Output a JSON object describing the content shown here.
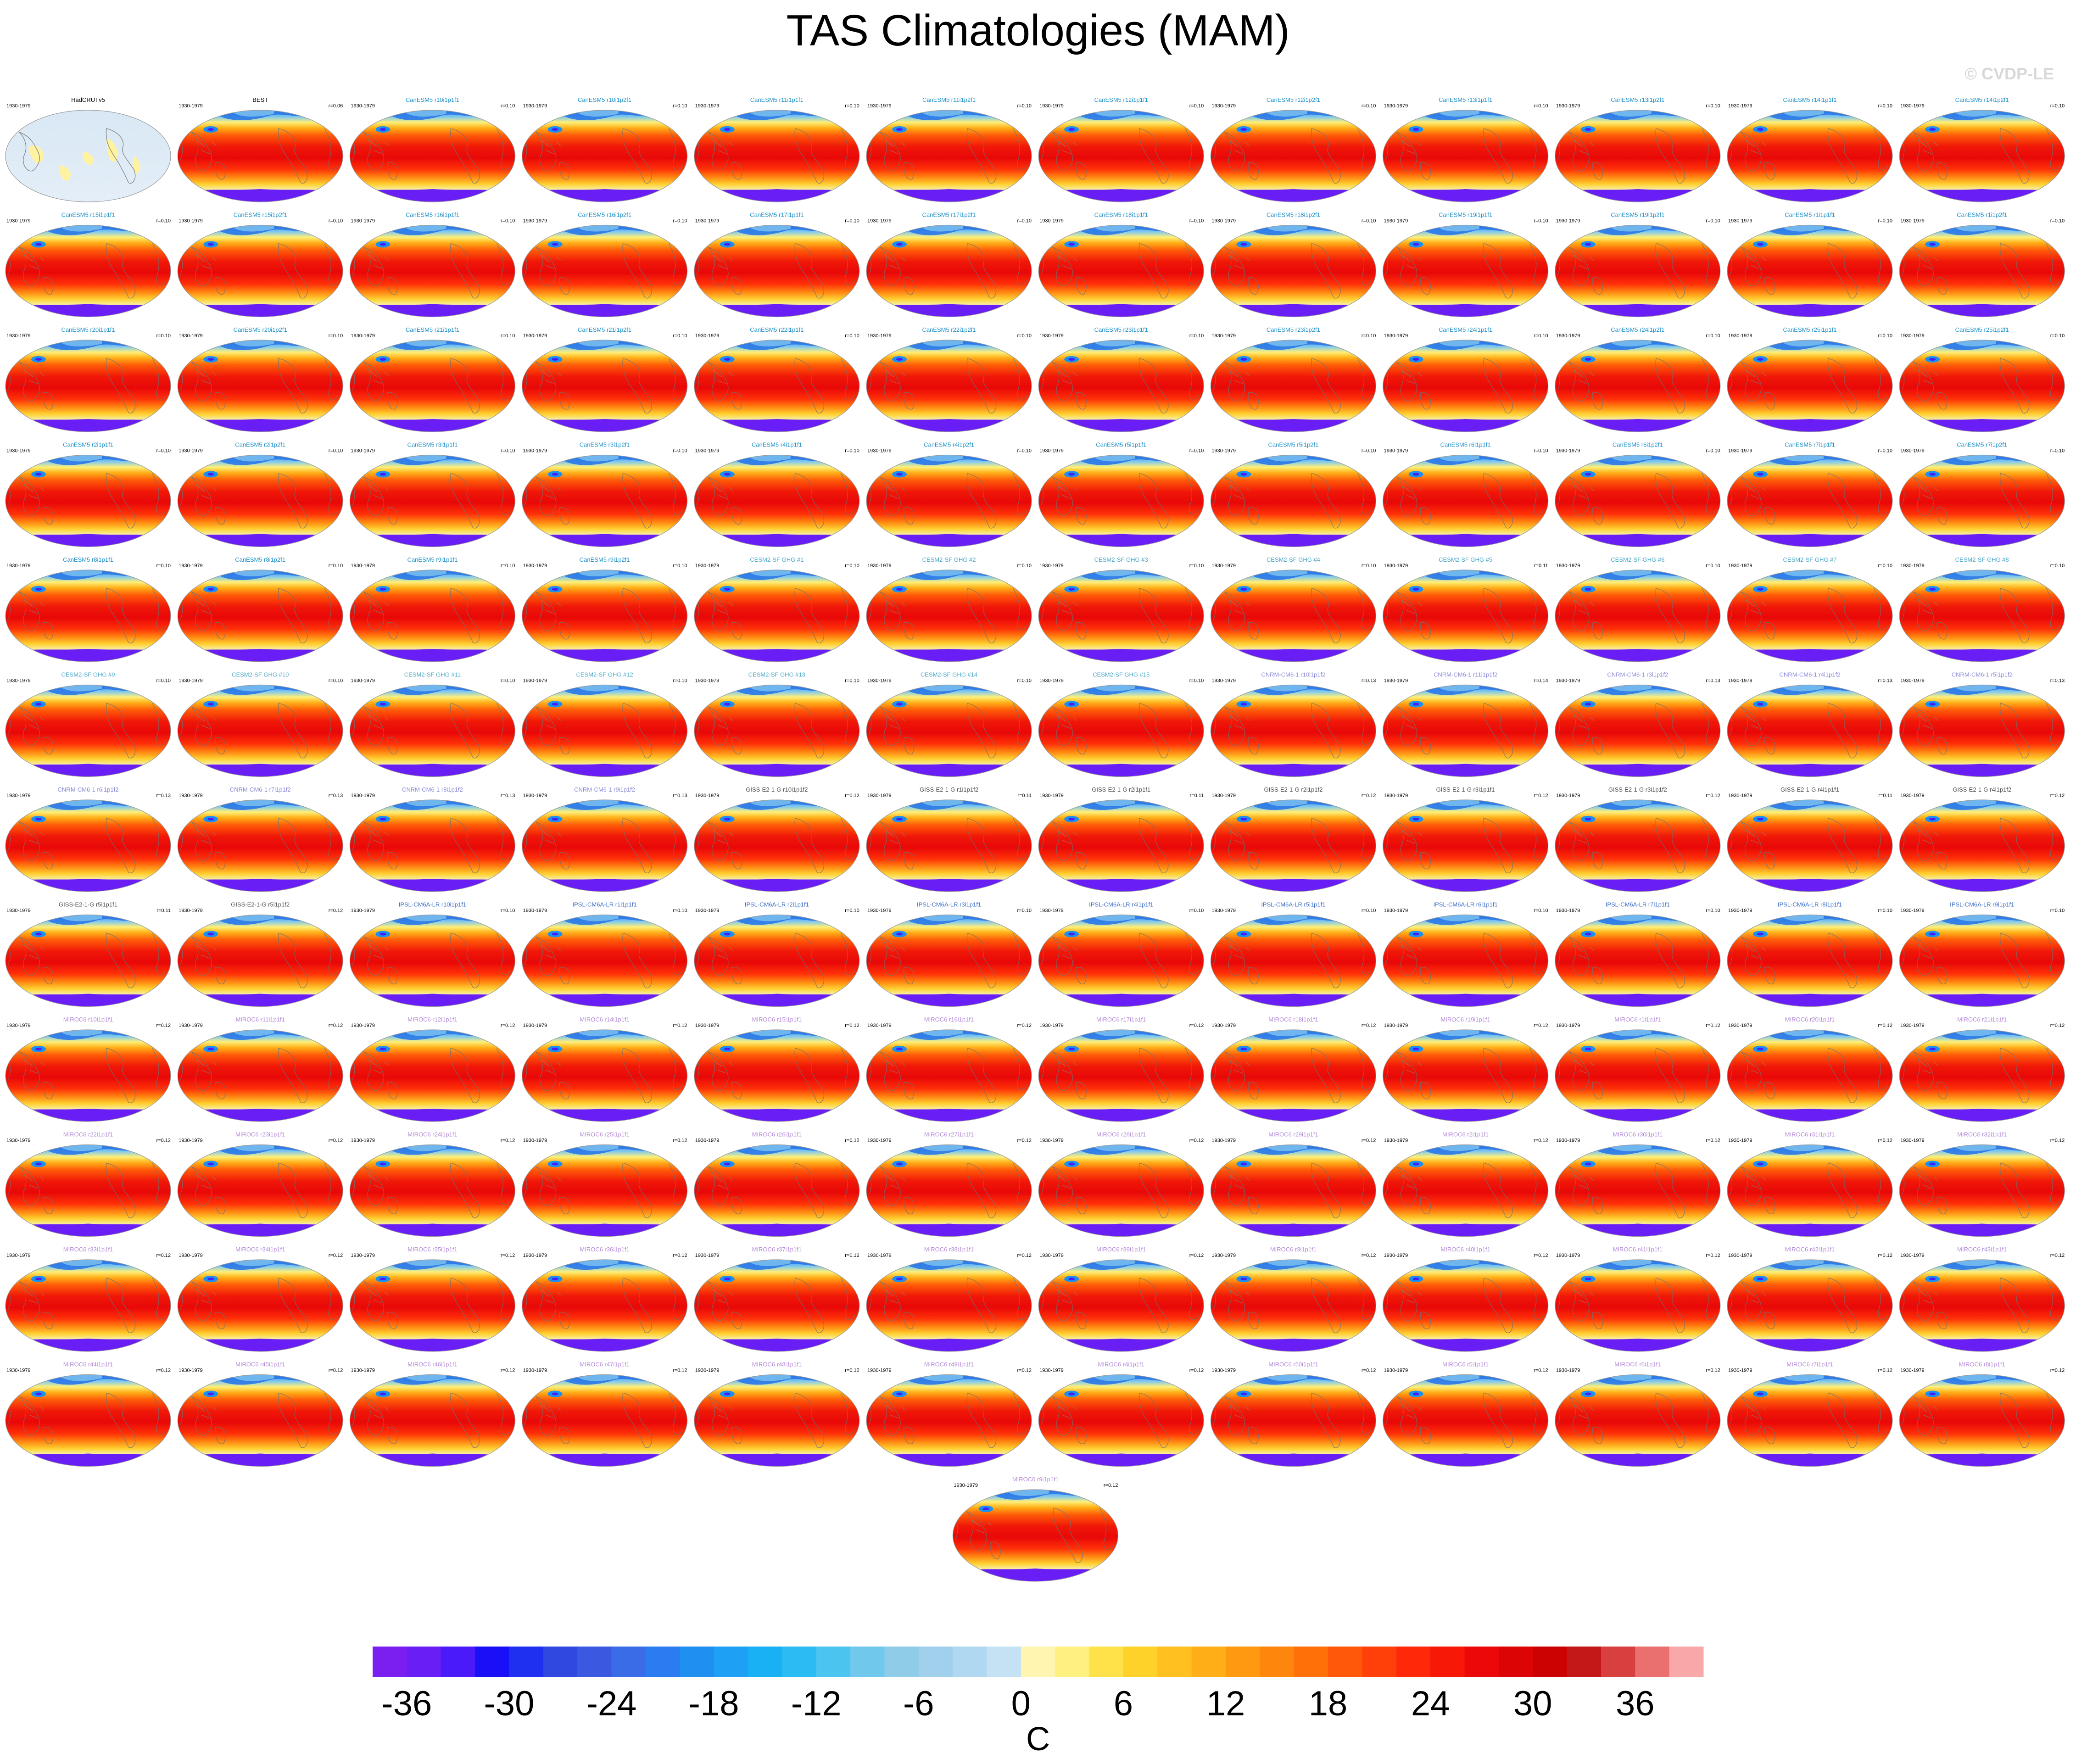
{
  "title": "TAS Climatologies (MAM)",
  "watermark": "© CVDP-LE",
  "chart_data": {
    "type": "heatmap",
    "title": "TAS Climatologies (MAM)",
    "projection": "global robinson map panels",
    "period_label": "1930-1979",
    "panels": [
      {
        "name": "HadCRUTv5",
        "r": "",
        "color": "#000000",
        "kind": "obs"
      },
      {
        "name": "BEST",
        "r": "r=0.06",
        "color": "#000000"
      },
      {
        "name": "CanESM5 r10i1p1f1",
        "r": "r=0.10",
        "color": "#1e90c8"
      },
      {
        "name": "CanESM5 r10i1p2f1",
        "r": "r=0.10",
        "color": "#1e90c8"
      },
      {
        "name": "CanESM5 r11i1p1f1",
        "r": "r=0.10",
        "color": "#1e90c8"
      },
      {
        "name": "CanESM5 r11i1p2f1",
        "r": "r=0.10",
        "color": "#1e90c8"
      },
      {
        "name": "CanESM5 r12i1p1f1",
        "r": "r=0.10",
        "color": "#1e90c8"
      },
      {
        "name": "CanESM5 r12i1p2f1",
        "r": "r=0.10",
        "color": "#1e90c8"
      },
      {
        "name": "CanESM5 r13i1p1f1",
        "r": "r=0.10",
        "color": "#1e90c8"
      },
      {
        "name": "CanESM5 r13i1p2f1",
        "r": "r=0.10",
        "color": "#1e90c8"
      },
      {
        "name": "CanESM5 r14i1p1f1",
        "r": "r=0.10",
        "color": "#1e90c8"
      },
      {
        "name": "CanESM5 r14i1p2f1",
        "r": "r=0.10",
        "color": "#1e90c8"
      },
      {
        "name": "CanESM5 r15i1p1f1",
        "r": "r=0.10",
        "color": "#1e90c8"
      },
      {
        "name": "CanESM5 r15i1p2f1",
        "r": "r=0.10",
        "color": "#1e90c8"
      },
      {
        "name": "CanESM5 r16i1p1f1",
        "r": "r=0.10",
        "color": "#1e90c8"
      },
      {
        "name": "CanESM5 r16i1p2f1",
        "r": "r=0.10",
        "color": "#1e90c8"
      },
      {
        "name": "CanESM5 r17i1p1f1",
        "r": "r=0.10",
        "color": "#1e90c8"
      },
      {
        "name": "CanESM5 r17i1p2f1",
        "r": "r=0.10",
        "color": "#1e90c8"
      },
      {
        "name": "CanESM5 r18i1p1f1",
        "r": "r=0.10",
        "color": "#1e90c8"
      },
      {
        "name": "CanESM5 r18i1p2f1",
        "r": "r=0.10",
        "color": "#1e90c8"
      },
      {
        "name": "CanESM5 r19i1p1f1",
        "r": "r=0.10",
        "color": "#1e90c8"
      },
      {
        "name": "CanESM5 r19i1p2f1",
        "r": "r=0.10",
        "color": "#1e90c8"
      },
      {
        "name": "CanESM5 r1i1p1f1",
        "r": "r=0.10",
        "color": "#1e90c8"
      },
      {
        "name": "CanESM5 r1i1p2f1",
        "r": "r=0.10",
        "color": "#1e90c8"
      },
      {
        "name": "CanESM5 r20i1p1f1",
        "r": "r=0.10",
        "color": "#1e90c8"
      },
      {
        "name": "CanESM5 r20i1p2f1",
        "r": "r=0.10",
        "color": "#1e90c8"
      },
      {
        "name": "CanESM5 r21i1p1f1",
        "r": "r=0.10",
        "color": "#1e90c8"
      },
      {
        "name": "CanESM5 r21i1p2f1",
        "r": "r=0.10",
        "color": "#1e90c8"
      },
      {
        "name": "CanESM5 r22i1p1f1",
        "r": "r=0.10",
        "color": "#1e90c8"
      },
      {
        "name": "CanESM5 r22i1p2f1",
        "r": "r=0.10",
        "color": "#1e90c8"
      },
      {
        "name": "CanESM5 r23i1p1f1",
        "r": "r=0.10",
        "color": "#1e90c8"
      },
      {
        "name": "CanESM5 r23i1p2f1",
        "r": "r=0.10",
        "color": "#1e90c8"
      },
      {
        "name": "CanESM5 r24i1p1f1",
        "r": "r=0.10",
        "color": "#1e90c8"
      },
      {
        "name": "CanESM5 r24i1p2f1",
        "r": "r=0.10",
        "color": "#1e90c8"
      },
      {
        "name": "CanESM5 r25i1p1f1",
        "r": "r=0.10",
        "color": "#1e90c8"
      },
      {
        "name": "CanESM5 r25i1p2f1",
        "r": "r=0.10",
        "color": "#1e90c8"
      },
      {
        "name": "CanESM5 r2i1p1f1",
        "r": "r=0.10",
        "color": "#1e90c8"
      },
      {
        "name": "CanESM5 r2i1p2f1",
        "r": "r=0.10",
        "color": "#1e90c8"
      },
      {
        "name": "CanESM5 r3i1p1f1",
        "r": "r=0.10",
        "color": "#1e90c8"
      },
      {
        "name": "CanESM5 r3i1p2f1",
        "r": "r=0.10",
        "color": "#1e90c8"
      },
      {
        "name": "CanESM5 r4i1p1f1",
        "r": "r=0.10",
        "color": "#1e90c8"
      },
      {
        "name": "CanESM5 r4i1p2f1",
        "r": "r=0.10",
        "color": "#1e90c8"
      },
      {
        "name": "CanESM5 r5i1p1f1",
        "r": "r=0.10",
        "color": "#1e90c8"
      },
      {
        "name": "CanESM5 r5i1p2f1",
        "r": "r=0.10",
        "color": "#1e90c8"
      },
      {
        "name": "CanESM5 r6i1p1f1",
        "r": "r=0.10",
        "color": "#1e90c8"
      },
      {
        "name": "CanESM5 r6i1p2f1",
        "r": "r=0.10",
        "color": "#1e90c8"
      },
      {
        "name": "CanESM5 r7i1p1f1",
        "r": "r=0.10",
        "color": "#1e90c8"
      },
      {
        "name": "CanESM5 r7i1p2f1",
        "r": "r=0.10",
        "color": "#1e90c8"
      },
      {
        "name": "CanESM5 r8i1p1f1",
        "r": "r=0.10",
        "color": "#1e90c8"
      },
      {
        "name": "CanESM5 r8i1p2f1",
        "r": "r=0.10",
        "color": "#1e90c8"
      },
      {
        "name": "CanESM5 r9i1p1f1",
        "r": "r=0.10",
        "color": "#1e90c8"
      },
      {
        "name": "CanESM5 r9i1p2f1",
        "r": "r=0.10",
        "color": "#1e90c8"
      },
      {
        "name": "CESM2-SF GHG #1",
        "r": "r=0.10",
        "color": "#4aa8c8"
      },
      {
        "name": "CESM2-SF GHG #2",
        "r": "r=0.10",
        "color": "#4aa8c8"
      },
      {
        "name": "CESM2-SF GHG #3",
        "r": "r=0.10",
        "color": "#4aa8c8"
      },
      {
        "name": "CESM2-SF GHG #4",
        "r": "r=0.10",
        "color": "#4aa8c8"
      },
      {
        "name": "CESM2-SF GHG #5",
        "r": "r=0.11",
        "color": "#4aa8c8"
      },
      {
        "name": "CESM2-SF GHG #6",
        "r": "r=0.10",
        "color": "#4aa8c8"
      },
      {
        "name": "CESM2-SF GHG #7",
        "r": "r=0.10",
        "color": "#4aa8c8"
      },
      {
        "name": "CESM2-SF GHG #8",
        "r": "r=0.10",
        "color": "#4aa8c8"
      },
      {
        "name": "CESM2-SF GHG #9",
        "r": "r=0.10",
        "color": "#4aa8c8"
      },
      {
        "name": "CESM2-SF GHG #10",
        "r": "r=0.10",
        "color": "#4aa8c8"
      },
      {
        "name": "CESM2-SF GHG #11",
        "r": "r=0.10",
        "color": "#4aa8c8"
      },
      {
        "name": "CESM2-SF GHG #12",
        "r": "r=0.10",
        "color": "#4aa8c8"
      },
      {
        "name": "CESM2-SF GHG #13",
        "r": "r=0.10",
        "color": "#4aa8c8"
      },
      {
        "name": "CESM2-SF GHG #14",
        "r": "r=0.10",
        "color": "#4aa8c8"
      },
      {
        "name": "CESM2-SF GHG #15",
        "r": "r=0.10",
        "color": "#4aa8c8"
      },
      {
        "name": "CNRM-CM6-1 r10i1p1f2",
        "r": "r=0.13",
        "color": "#8a8ad8"
      },
      {
        "name": "CNRM-CM6-1 r11i1p1f2",
        "r": "r=0.14",
        "color": "#8a8ad8"
      },
      {
        "name": "CNRM-CM6-1 r3i1p1f2",
        "r": "r=0.13",
        "color": "#8a8ad8"
      },
      {
        "name": "CNRM-CM6-1 r4i1p1f2",
        "r": "r=0.13",
        "color": "#8a8ad8"
      },
      {
        "name": "CNRM-CM6-1 r5i1p1f2",
        "r": "r=0.13",
        "color": "#8a8ad8"
      },
      {
        "name": "CNRM-CM6-1 r6i1p1f2",
        "r": "r=0.13",
        "color": "#8a8ad8"
      },
      {
        "name": "CNRM-CM6-1 r7i1p1f2",
        "r": "r=0.13",
        "color": "#8a8ad8"
      },
      {
        "name": "CNRM-CM6-1 r8i1p1f2",
        "r": "r=0.13",
        "color": "#8a8ad8"
      },
      {
        "name": "CNRM-CM6-1 r9i1p1f2",
        "r": "r=0.13",
        "color": "#8a8ad8"
      },
      {
        "name": "GISS-E2-1-G r10i1p1f2",
        "r": "r=0.12",
        "color": "#505050"
      },
      {
        "name": "GISS-E2-1-G r1i1p1f2",
        "r": "r=0.11",
        "color": "#505050"
      },
      {
        "name": "GISS-E2-1-G r2i1p1f1",
        "r": "r=0.11",
        "color": "#505050"
      },
      {
        "name": "GISS-E2-1-G r2i1p1f2",
        "r": "r=0.12",
        "color": "#505050"
      },
      {
        "name": "GISS-E2-1-G r3i1p1f1",
        "r": "r=0.12",
        "color": "#505050"
      },
      {
        "name": "GISS-E2-1-G r3i1p1f2",
        "r": "r=0.12",
        "color": "#505050"
      },
      {
        "name": "GISS-E2-1-G r4i1p1f1",
        "r": "r=0.11",
        "color": "#505050"
      },
      {
        "name": "GISS-E2-1-G r4i1p1f2",
        "r": "r=0.12",
        "color": "#505050"
      },
      {
        "name": "GISS-E2-1-G r5i1p1f1",
        "r": "r=0.11",
        "color": "#505050"
      },
      {
        "name": "GISS-E2-1-G r5i1p1f2",
        "r": "r=0.12",
        "color": "#505050"
      },
      {
        "name": "IPSL-CM6A-LR r10i1p1f1",
        "r": "r=0.10",
        "color": "#3c6ec8"
      },
      {
        "name": "IPSL-CM6A-LR r1i1p1f1",
        "r": "r=0.10",
        "color": "#3c6ec8"
      },
      {
        "name": "IPSL-CM6A-LR r2i1p1f1",
        "r": "r=0.10",
        "color": "#3c6ec8"
      },
      {
        "name": "IPSL-CM6A-LR r3i1p1f1",
        "r": "r=0.10",
        "color": "#3c6ec8"
      },
      {
        "name": "IPSL-CM6A-LR r4i1p1f1",
        "r": "r=0.10",
        "color": "#3c6ec8"
      },
      {
        "name": "IPSL-CM6A-LR r5i1p1f1",
        "r": "r=0.10",
        "color": "#3c6ec8"
      },
      {
        "name": "IPSL-CM6A-LR r6i1p1f1",
        "r": "r=0.10",
        "color": "#3c6ec8"
      },
      {
        "name": "IPSL-CM6A-LR r7i1p1f1",
        "r": "r=0.10",
        "color": "#3c6ec8"
      },
      {
        "name": "IPSL-CM6A-LR r8i1p1f1",
        "r": "r=0.10",
        "color": "#3c6ec8"
      },
      {
        "name": "IPSL-CM6A-LR r9i1p1f1",
        "r": "r=0.10",
        "color": "#3c6ec8"
      },
      {
        "name": "MIROC6 r10i1p1f1",
        "r": "r=0.12",
        "color": "#b48ad8"
      },
      {
        "name": "MIROC6 r11i1p1f1",
        "r": "r=0.12",
        "color": "#b48ad8"
      },
      {
        "name": "MIROC6 r12i1p1f1",
        "r": "r=0.12",
        "color": "#b48ad8"
      },
      {
        "name": "MIROC6 r14i1p1f1",
        "r": "r=0.12",
        "color": "#b48ad8"
      },
      {
        "name": "MIROC6 r15i1p1f1",
        "r": "r=0.12",
        "color": "#b48ad8"
      },
      {
        "name": "MIROC6 r16i1p1f1",
        "r": "r=0.12",
        "color": "#b48ad8"
      },
      {
        "name": "MIROC6 r17i1p1f1",
        "r": "r=0.12",
        "color": "#b48ad8"
      },
      {
        "name": "MIROC6 r18i1p1f1",
        "r": "r=0.12",
        "color": "#b48ad8"
      },
      {
        "name": "MIROC6 r19i1p1f1",
        "r": "r=0.12",
        "color": "#b48ad8"
      },
      {
        "name": "MIROC6 r1i1p1f1",
        "r": "r=0.12",
        "color": "#b48ad8"
      },
      {
        "name": "MIROC6 r20i1p1f1",
        "r": "r=0.12",
        "color": "#b48ad8"
      },
      {
        "name": "MIROC6 r21i1p1f1",
        "r": "r=0.12",
        "color": "#b48ad8"
      },
      {
        "name": "MIROC6 r22i1p1f1",
        "r": "r=0.12",
        "color": "#b48ad8"
      },
      {
        "name": "MIROC6 r23i1p1f1",
        "r": "r=0.12",
        "color": "#b48ad8"
      },
      {
        "name": "MIROC6 r24i1p1f1",
        "r": "r=0.12",
        "color": "#b48ad8"
      },
      {
        "name": "MIROC6 r25i1p1f1",
        "r": "r=0.12",
        "color": "#b48ad8"
      },
      {
        "name": "MIROC6 r26i1p1f1",
        "r": "r=0.12",
        "color": "#b48ad8"
      },
      {
        "name": "MIROC6 r27i1p1f1",
        "r": "r=0.12",
        "color": "#b48ad8"
      },
      {
        "name": "MIROC6 r28i1p1f1",
        "r": "r=0.12",
        "color": "#b48ad8"
      },
      {
        "name": "MIROC6 r29i1p1f1",
        "r": "r=0.12",
        "color": "#b48ad8"
      },
      {
        "name": "MIROC6 r2i1p1f1",
        "r": "r=0.12",
        "color": "#b48ad8"
      },
      {
        "name": "MIROC6 r30i1p1f1",
        "r": "r=0.12",
        "color": "#b48ad8"
      },
      {
        "name": "MIROC6 r31i1p1f1",
        "r": "r=0.12",
        "color": "#b48ad8"
      },
      {
        "name": "MIROC6 r32i1p1f1",
        "r": "r=0.12",
        "color": "#b48ad8"
      },
      {
        "name": "MIROC6 r33i1p1f1",
        "r": "r=0.12",
        "color": "#b48ad8"
      },
      {
        "name": "MIROC6 r34i1p1f1",
        "r": "r=0.12",
        "color": "#b48ad8"
      },
      {
        "name": "MIROC6 r35i1p1f1",
        "r": "r=0.12",
        "color": "#b48ad8"
      },
      {
        "name": "MIROC6 r36i1p1f1",
        "r": "r=0.12",
        "color": "#b48ad8"
      },
      {
        "name": "MIROC6 r37i1p1f1",
        "r": "r=0.12",
        "color": "#b48ad8"
      },
      {
        "name": "MIROC6 r38i1p1f1",
        "r": "r=0.12",
        "color": "#b48ad8"
      },
      {
        "name": "MIROC6 r39i1p1f1",
        "r": "r=0.12",
        "color": "#b48ad8"
      },
      {
        "name": "MIROC6 r3i1p1f1",
        "r": "r=0.12",
        "color": "#b48ad8"
      },
      {
        "name": "MIROC6 r40i1p1f1",
        "r": "r=0.12",
        "color": "#b48ad8"
      },
      {
        "name": "MIROC6 r41i1p1f1",
        "r": "r=0.12",
        "color": "#b48ad8"
      },
      {
        "name": "MIROC6 r42i1p1f1",
        "r": "r=0.12",
        "color": "#b48ad8"
      },
      {
        "name": "MIROC6 r43i1p1f1",
        "r": "r=0.12",
        "color": "#b48ad8"
      },
      {
        "name": "MIROC6 r44i1p1f1",
        "r": "r=0.12",
        "color": "#b48ad8"
      },
      {
        "name": "MIROC6 r45i1p1f1",
        "r": "r=0.12",
        "color": "#b48ad8"
      },
      {
        "name": "MIROC6 r46i1p1f1",
        "r": "r=0.12",
        "color": "#b48ad8"
      },
      {
        "name": "MIROC6 r47i1p1f1",
        "r": "r=0.12",
        "color": "#b48ad8"
      },
      {
        "name": "MIROC6 r48i1p1f1",
        "r": "r=0.12",
        "color": "#b48ad8"
      },
      {
        "name": "MIROC6 r49i1p1f1",
        "r": "r=0.12",
        "color": "#b48ad8"
      },
      {
        "name": "MIROC6 r4i1p1f1",
        "r": "r=0.12",
        "color": "#b48ad8"
      },
      {
        "name": "MIROC6 r50i1p1f1",
        "r": "r=0.12",
        "color": "#b48ad8"
      },
      {
        "name": "MIROC6 r5i1p1f1",
        "r": "r=0.12",
        "color": "#b48ad8"
      },
      {
        "name": "MIROC6 r6i1p1f1",
        "r": "r=0.12",
        "color": "#b48ad8"
      },
      {
        "name": "MIROC6 r7i1p1f1",
        "r": "r=0.12",
        "color": "#b48ad8"
      },
      {
        "name": "MIROC6 r8i1p1f1",
        "r": "r=0.12",
        "color": "#b48ad8"
      },
      {
        "name": "MIROC6 r9i1p1f1",
        "r": "r=0.12",
        "color": "#b48ad8"
      }
    ],
    "colorbar": {
      "units": "C",
      "ticks": [
        -36,
        -30,
        -24,
        -18,
        -12,
        -6,
        0,
        6,
        12,
        18,
        24,
        30,
        36
      ],
      "boundaries": [
        -40,
        -38,
        -36,
        -34,
        -32,
        -30,
        -28,
        -26,
        -24,
        -22,
        -20,
        -18,
        -16,
        -14,
        -12,
        -10,
        -8,
        -6,
        -4,
        -2,
        0,
        2,
        4,
        6,
        8,
        10,
        12,
        14,
        16,
        18,
        20,
        22,
        24,
        26,
        28,
        30,
        32,
        34,
        36,
        38,
        40
      ],
      "colors": [
        "#7a1ff0",
        "#6a1ef6",
        "#4a1af8",
        "#1a10f8",
        "#2030f0",
        "#3048e0",
        "#3a58e0",
        "#3a6ce8",
        "#2a7cf0",
        "#2090f0",
        "#1ea0f4",
        "#1ab0f4",
        "#2cbcf4",
        "#4cc4f0",
        "#70c8ec",
        "#8ecce8",
        "#a0d0ec",
        "#b0d8f0",
        "#c4e2f4",
        "#fff4b0",
        "#fff080",
        "#ffe24a",
        "#ffd22a",
        "#ffc020",
        "#ffae18",
        "#ff9a10",
        "#ff860c",
        "#ff7008",
        "#ff5808",
        "#ff4008",
        "#ff2808",
        "#f81808",
        "#ec0808",
        "#dc0404",
        "#cc0202",
        "#c41818",
        "#d84040",
        "#ea7070",
        "#f8a8a8"
      ]
    }
  }
}
